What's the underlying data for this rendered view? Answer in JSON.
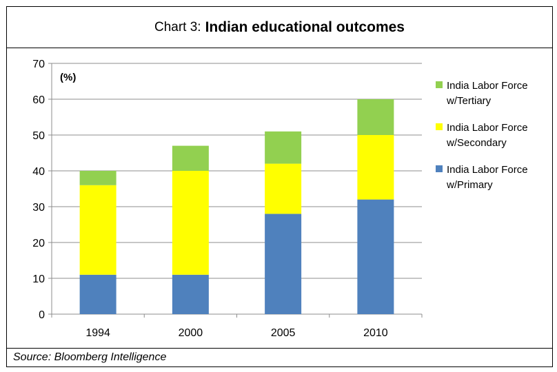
{
  "header": {
    "prefix": "Chart 3:",
    "title": "Indian educational outcomes"
  },
  "footer": {
    "source": "Source: Bloomberg Intelligence"
  },
  "chart_data": {
    "type": "bar",
    "stacked": true,
    "title": "Indian educational outcomes",
    "unit_label": "(%)",
    "categories": [
      "1994",
      "2000",
      "2005",
      "2010"
    ],
    "series": [
      {
        "name": "India Labor Force w/Primary",
        "legend_lines": [
          "India Labor Force",
          "w/Primary"
        ],
        "color": "#4F81BD",
        "values": [
          11,
          11,
          28,
          32
        ]
      },
      {
        "name": "India Labor Force w/Secondary",
        "legend_lines": [
          "India Labor Force",
          "w/Secondary"
        ],
        "color": "#FFFF00",
        "values": [
          25,
          29,
          14,
          18
        ]
      },
      {
        "name": "India Labor Force w/Tertiary",
        "legend_lines": [
          "India Labor Force",
          "w/Tertiary"
        ],
        "color": "#92D050",
        "values": [
          4,
          7,
          9,
          10
        ]
      }
    ],
    "ylim": [
      0,
      70
    ],
    "yticks": [
      "0",
      "10",
      "20",
      "30",
      "40",
      "50",
      "60",
      "70"
    ],
    "grid": true,
    "legend_position": "right"
  }
}
